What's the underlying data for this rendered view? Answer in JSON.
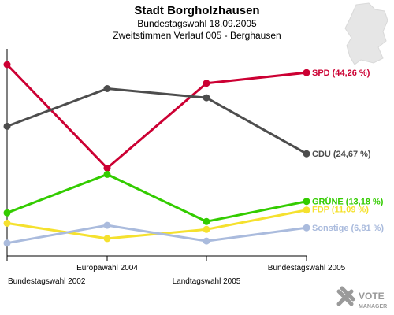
{
  "chart_data": {
    "type": "line",
    "title": "Stadt Borgholzhausen",
    "subtitle_1": "Bundestagswahl 18.09.2005",
    "subtitle_2": "Zweitstimmen Verlauf 005 - Berghausen",
    "categories": [
      "Bundestagswahl 2002",
      "Europawahl 2004",
      "Landtagswahl 2005",
      "Bundestagswahl 2005"
    ],
    "ylim": [
      0,
      50
    ],
    "grid": false,
    "series": [
      {
        "name": "SPD",
        "label": "SPD (44,26 %)",
        "color": "#cc0033",
        "values": [
          46.2,
          21.2,
          41.7,
          44.26
        ]
      },
      {
        "name": "CDU",
        "label": "CDU (24,67 %)",
        "color": "#4d4d4d",
        "values": [
          31.3,
          40.4,
          38.2,
          24.67
        ]
      },
      {
        "name": "GRÜNE",
        "label": "GRÜNE (13,18 %)",
        "color": "#33cc00",
        "values": [
          10.4,
          19.7,
          8.3,
          13.18
        ]
      },
      {
        "name": "FDP",
        "label": "FDP (11,09 %)",
        "color": "#f5e12e",
        "values": [
          7.9,
          4.2,
          6.4,
          11.09
        ]
      },
      {
        "name": "Sonstige",
        "label": "Sonstige (6,81 %)",
        "color": "#aabbdd",
        "values": [
          3.1,
          7.4,
          3.6,
          6.81
        ]
      }
    ]
  },
  "branding": {
    "logo_line1": "VOTE",
    "logo_line2": "MANAGER"
  }
}
